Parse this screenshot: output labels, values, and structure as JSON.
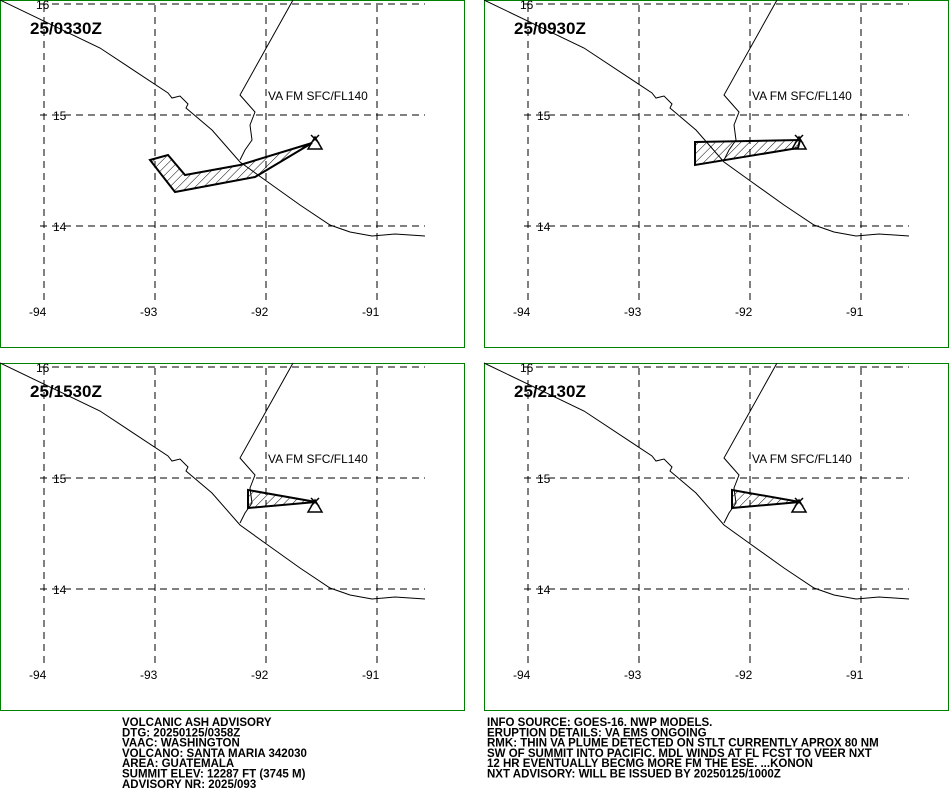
{
  "panels": [
    {
      "time": "25/0330Z",
      "label": "VA FM SFC/FL140"
    },
    {
      "time": "25/0930Z",
      "label": "VA FM SFC/FL140"
    },
    {
      "time": "25/1530Z",
      "label": "VA FM SFC/FL140"
    },
    {
      "time": "25/2130Z",
      "label": "VA FM SFC/FL140"
    }
  ],
  "lat_labels": [
    "16",
    "15",
    "14"
  ],
  "lon_labels": [
    "-94",
    "-93",
    "-92",
    "-91"
  ],
  "advisory_left": [
    "VOLCANIC ASH ADVISORY",
    "DTG: 20250125/0358Z",
    "VAAC: WASHINGTON",
    "VOLCANO: SANTA MARIA 342030",
    "AREA: GUATEMALA",
    "SUMMIT ELEV: 12287 FT (3745 M)",
    "ADVISORY NR: 2025/093"
  ],
  "advisory_right": [
    "INFO SOURCE: GOES-16. NWP MODELS.",
    "ERUPTION DETAILS: VA EMS ONGOING",
    "RMK: THIN VA PLUME DETECTED ON STLT CURRENTLY APROX 80 NM",
    "SW OF SUMMIT INTO PACIFIC. MDL WINDS AT FL FCST TO VEER NXT",
    "12 HR EVENTUALLY BECMG MORE FM THE ESE. ...KONON",
    "NXT ADVISORY: WILL BE ISSUED BY 20250125/1000Z"
  ]
}
